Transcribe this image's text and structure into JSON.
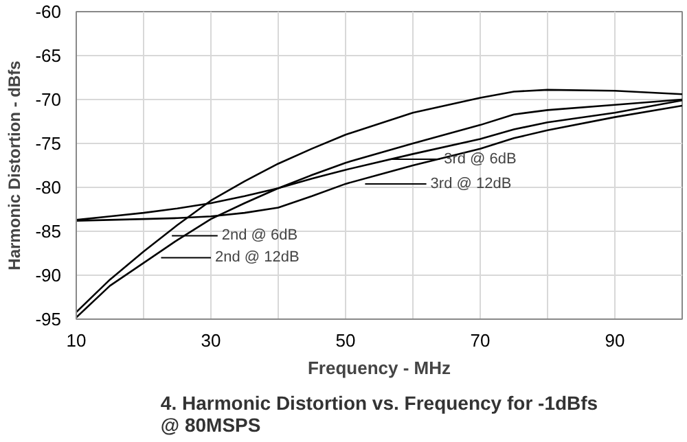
{
  "chart_data": {
    "type": "line",
    "title": "4. Harmonic Distortion vs. Frequency for -1dBfs\n@ 80MSPS",
    "xlabel": "Frequency - MHz",
    "ylabel": "Harmonic Distortion - dBfs",
    "x": [
      10,
      15,
      20,
      25,
      30,
      35,
      40,
      45,
      50,
      60,
      70,
      75,
      80,
      90,
      100
    ],
    "series": [
      {
        "color": "#000000",
        "values": [
          -94.2,
          -90.5,
          -87.3,
          -84.3,
          -81.5,
          -79.3,
          -77.3,
          -75.6,
          -74,
          -71.5,
          -69.8,
          -69.1,
          -68.9,
          -69,
          -69.4
        ]
      },
      {
        "color": "#000000",
        "values": [
          -94.8,
          -91.2,
          -88.6,
          -86,
          -83.6,
          -81.8,
          -80.1,
          -78.6,
          -77.2,
          -75,
          -72.9,
          -71.7,
          -71.2,
          -70.6,
          -70
        ]
      },
      {
        "color": "#000000",
        "values": [
          -83.7,
          -83.3,
          -82.9,
          -82.4,
          -81.8,
          -81,
          -80.1,
          -79,
          -78,
          -76.2,
          -74.5,
          -73.4,
          -72.6,
          -71.5,
          -70.1
        ]
      },
      {
        "color": "#000000",
        "values": [
          -83.8,
          -83.7,
          -83.6,
          -83.5,
          -83.3,
          -82.9,
          -82.3,
          -81,
          -79.6,
          -77.5,
          -75.6,
          -74.4,
          -73.5,
          -72,
          -70.7
        ]
      }
    ],
    "annotations": [
      "2nd @ 6dB",
      "2nd @ 12dB",
      "3rd @ 6dB",
      "3rd @ 12dB"
    ],
    "xlim": [
      10,
      100
    ],
    "xticks": [
      {
        "value": 10,
        "label": "10"
      },
      {
        "value": 20,
        "label": null
      },
      {
        "value": 30,
        "label": "30"
      },
      {
        "value": 40,
        "label": null
      },
      {
        "value": 50,
        "label": "50"
      },
      {
        "value": 60,
        "label": null
      },
      {
        "value": 70,
        "label": "70"
      },
      {
        "value": 80,
        "label": null
      },
      {
        "value": 90,
        "label": "90"
      },
      {
        "value": 100,
        "label": null
      }
    ],
    "ylim": [
      -95,
      -60
    ],
    "yticks": [
      -95,
      -90,
      -85,
      -80,
      -75,
      -70,
      -65,
      -60
    ],
    "grid": true,
    "marker": "none",
    "line_style": "solid"
  }
}
